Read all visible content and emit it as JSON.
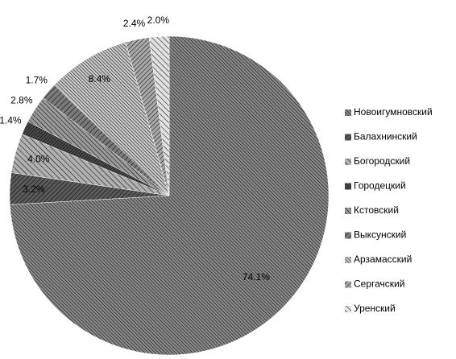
{
  "chart_data": {
    "type": "pie",
    "categories": [
      "Новоигумновский",
      "Балахнинский",
      "Богородский",
      "Городецкий",
      "Кстовский",
      "Выксунский",
      "Арзамасский",
      "Сергачский",
      "Уренский"
    ],
    "values": [
      74.1,
      3.2,
      4.0,
      1.4,
      2.8,
      1.7,
      8.4,
      2.4,
      2.0
    ],
    "value_labels": [
      "74.1%",
      "3.2%",
      "4.0%",
      "1.4%",
      "2.8%",
      "1.7%",
      "8.4%",
      "2.4%",
      "2.0%"
    ],
    "colors": [
      "#8a8a8a",
      "#5a5a5a",
      "#b0b0b0",
      "#4a4a4a",
      "#9a9a9a",
      "#7a7a7a",
      "#c8c8c8",
      "#a8a8a8",
      "#e0e0e0"
    ],
    "legend": "right"
  }
}
